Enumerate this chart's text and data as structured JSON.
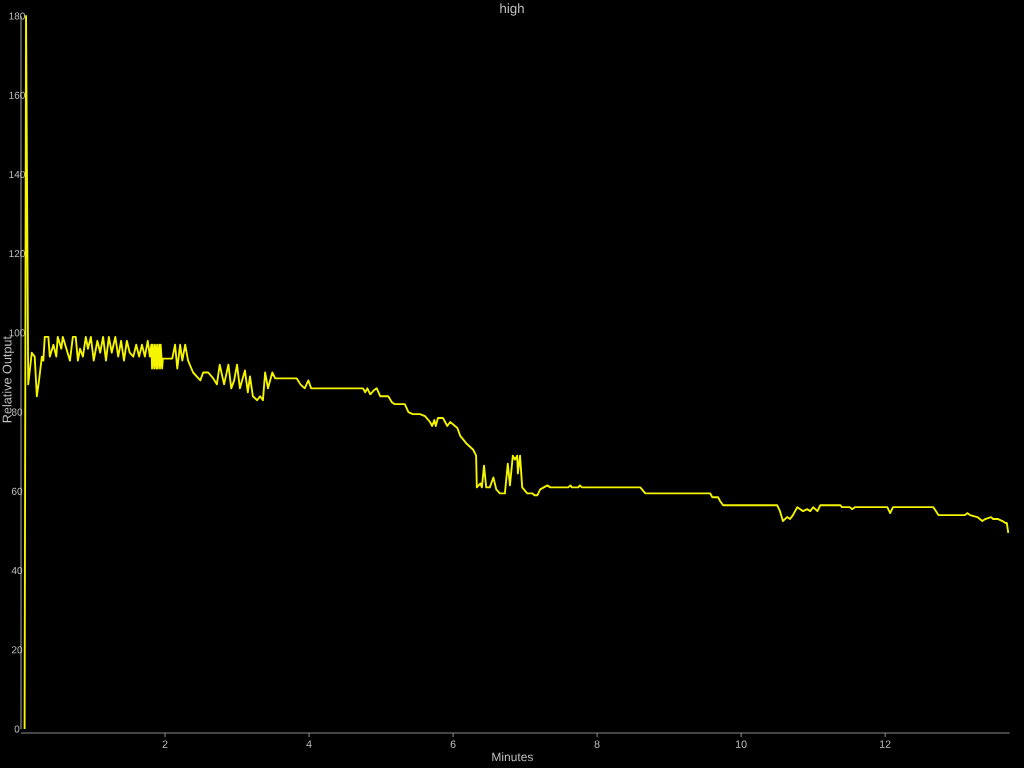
{
  "chart_data": {
    "type": "line",
    "title": "high",
    "xlabel": "Minutes",
    "ylabel": "Relative Output",
    "xlim": [
      0,
      13.73
    ],
    "ylim": [
      0,
      180
    ],
    "xticks": [
      2,
      4,
      6,
      8,
      10,
      12
    ],
    "yticks": [
      0,
      20,
      40,
      60,
      80,
      100,
      120,
      140,
      160,
      180
    ],
    "x": [
      0.05,
      0.07,
      0.1,
      0.15,
      0.19,
      0.22,
      0.25,
      0.29,
      0.31,
      0.33,
      0.38,
      0.4,
      0.45,
      0.49,
      0.51,
      0.56,
      0.58,
      0.63,
      0.68,
      0.72,
      0.76,
      0.79,
      0.82,
      0.86,
      0.9,
      0.93,
      0.97,
      1.01,
      1.06,
      1.1,
      1.14,
      1.18,
      1.22,
      1.26,
      1.31,
      1.35,
      1.39,
      1.43,
      1.47,
      1.51,
      1.56,
      1.6,
      1.64,
      1.68,
      1.72,
      1.76,
      1.79,
      1.81,
      1.82,
      1.83,
      1.85,
      1.86,
      1.88,
      1.89,
      1.9,
      1.92,
      1.93,
      1.94,
      1.96,
      1.97,
      2.1,
      2.14,
      2.17,
      2.21,
      2.24,
      2.28,
      2.32,
      2.39,
      2.49,
      2.53,
      2.6,
      2.67,
      2.72,
      2.76,
      2.82,
      2.88,
      2.92,
      2.96,
      3.0,
      3.04,
      3.11,
      3.15,
      3.18,
      3.22,
      3.28,
      3.32,
      3.36,
      3.39,
      3.43,
      3.49,
      3.53,
      3.57,
      3.83,
      3.88,
      3.94,
      3.99,
      4.03,
      4.75,
      4.78,
      4.81,
      4.85,
      4.9,
      4.94,
      4.99,
      5.1,
      5.15,
      5.19,
      5.33,
      5.38,
      5.44,
      5.54,
      5.61,
      5.68,
      5.71,
      5.74,
      5.76,
      5.79,
      5.86,
      5.92,
      5.96,
      6.06,
      6.1,
      6.19,
      6.28,
      6.32,
      6.33,
      6.38,
      6.4,
      6.43,
      6.46,
      6.51,
      6.56,
      6.6,
      6.65,
      6.72,
      6.76,
      6.79,
      6.83,
      6.86,
      6.89,
      6.9,
      6.93,
      6.96,
      7.03,
      7.1,
      7.13,
      7.17,
      7.21,
      7.31,
      7.35,
      7.6,
      7.63,
      7.65,
      7.74,
      7.76,
      7.79,
      8.6,
      8.67,
      9.57,
      9.6,
      9.64,
      9.68,
      9.71,
      9.75,
      10.5,
      10.54,
      10.58,
      10.64,
      10.68,
      10.72,
      10.78,
      10.82,
      10.86,
      10.92,
      10.96,
      11.0,
      11.06,
      11.1,
      11.38,
      11.4,
      11.51,
      11.54,
      11.58,
      12.03,
      12.07,
      12.11,
      12.67,
      12.74,
      13.11,
      13.14,
      13.18,
      13.28,
      13.35,
      13.39,
      13.47,
      13.5,
      13.57,
      13.63,
      13.67,
      13.69,
      13.71
    ],
    "series": [
      {
        "color": "#f5f500",
        "values": [
          0,
          180,
          87,
          95,
          94,
          84,
          88,
          94,
          93,
          99,
          99,
          94,
          97,
          94,
          99,
          96,
          99,
          96,
          93,
          99,
          99,
          93,
          96,
          94,
          99,
          96,
          99,
          93,
          98,
          95,
          99,
          93,
          99,
          95,
          99,
          94,
          98,
          93,
          98,
          95,
          94,
          97,
          94,
          97,
          94,
          98,
          94,
          97,
          91,
          97,
          91,
          97,
          91,
          97,
          91,
          97,
          91,
          97,
          91,
          93.5,
          93.5,
          97,
          91,
          97,
          93,
          97,
          93,
          90,
          88,
          90,
          90,
          88.5,
          87,
          92,
          87,
          92,
          86,
          88,
          92,
          86,
          90.5,
          85,
          89,
          84,
          83,
          84,
          83,
          90,
          86,
          90,
          88.5,
          88.5,
          88.5,
          87,
          86,
          88,
          86,
          86,
          85,
          86,
          84.5,
          85.5,
          86,
          84,
          84,
          82.5,
          82,
          82,
          80,
          79.5,
          79.5,
          79,
          77.5,
          76.5,
          78,
          76.5,
          78.5,
          78.5,
          76.5,
          77.5,
          76,
          74,
          72,
          70.5,
          69,
          61,
          62,
          61,
          66.5,
          61,
          61,
          63.5,
          60.5,
          59.5,
          59.5,
          67,
          61.5,
          69,
          68,
          69,
          64.5,
          69,
          61,
          59.5,
          59.5,
          59,
          59,
          60.5,
          61.5,
          61,
          61,
          61.5,
          61,
          61,
          61.5,
          61,
          61,
          59.5,
          59.5,
          58.5,
          58.5,
          58.5,
          57.5,
          56.5,
          56.5,
          55,
          52.5,
          53.5,
          53,
          54,
          56,
          55.5,
          55,
          55.5,
          55,
          56,
          55,
          56.5,
          56.5,
          56,
          56,
          55.5,
          56,
          56,
          54.5,
          56,
          56,
          54,
          54,
          54.5,
          54,
          53.5,
          52.5,
          53,
          53.5,
          53,
          53,
          52.5,
          52,
          52,
          49.5
        ]
      }
    ]
  }
}
